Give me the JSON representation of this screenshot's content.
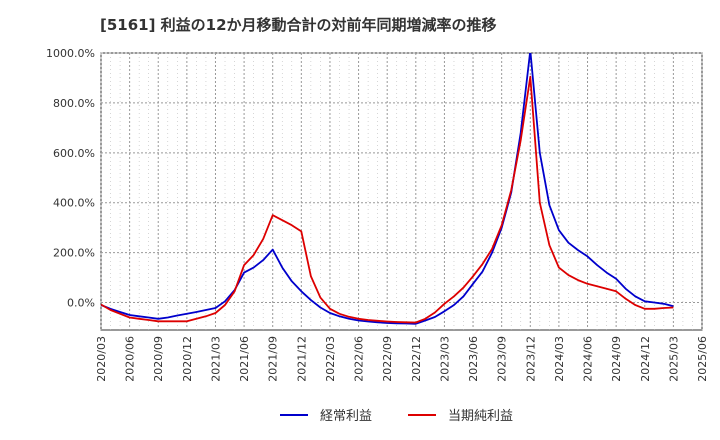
{
  "chart_data": {
    "type": "line",
    "title": "[5161]  利益の12か月移動合計の対前年同期増減率の推移",
    "xlabel": "",
    "ylabel": "",
    "ylim": [
      -110,
      1000
    ],
    "yticks": [
      0,
      200,
      400,
      600,
      800,
      1000
    ],
    "ytick_labels": [
      "0.0%",
      "200.0%",
      "400.0%",
      "600.0%",
      "800.0%",
      "1000.0%"
    ],
    "x_range": [
      "2020/03",
      "2025/06"
    ],
    "xtick_labels": [
      "2020/03",
      "2020/06",
      "2020/09",
      "2020/12",
      "2021/03",
      "2021/06",
      "2021/09",
      "2021/12",
      "2022/03",
      "2022/06",
      "2022/09",
      "2022/12",
      "2023/03",
      "2023/06",
      "2023/09",
      "2023/12",
      "2024/03",
      "2024/06",
      "2024/09",
      "2024/12",
      "2025/03",
      "2025/06"
    ],
    "grid": true,
    "legend_position": "bottom",
    "x": [
      "2020/03",
      "2020/04",
      "2020/05",
      "2020/06",
      "2020/07",
      "2020/08",
      "2020/09",
      "2020/10",
      "2020/11",
      "2020/12",
      "2021/01",
      "2021/02",
      "2021/03",
      "2021/04",
      "2021/05",
      "2021/06",
      "2021/07",
      "2021/08",
      "2021/09",
      "2021/10",
      "2021/11",
      "2021/12",
      "2022/01",
      "2022/02",
      "2022/03",
      "2022/04",
      "2022/05",
      "2022/06",
      "2022/07",
      "2022/08",
      "2022/09",
      "2022/10",
      "2022/11",
      "2022/12",
      "2023/01",
      "2023/02",
      "2023/03",
      "2023/04",
      "2023/05",
      "2023/06",
      "2023/07",
      "2023/08",
      "2023/09",
      "2023/10",
      "2023/11",
      "2023/12",
      "2024/01",
      "2024/02",
      "2024/03",
      "2024/04",
      "2024/05",
      "2024/06",
      "2024/07",
      "2024/08",
      "2024/09",
      "2024/10",
      "2024/11",
      "2024/12",
      "2025/01",
      "2025/02",
      "2025/03"
    ],
    "series": [
      {
        "name": "経常利益",
        "color": "#0000cc",
        "values": [
          -10,
          -25,
          -38,
          -50,
          -55,
          -60,
          -65,
          -60,
          -52,
          -45,
          -38,
          -30,
          -22,
          5,
          50,
          120,
          140,
          170,
          212,
          140,
          85,
          45,
          10,
          -20,
          -42,
          -55,
          -65,
          -72,
          -76,
          -79,
          -82,
          -83,
          -84,
          -85,
          -72,
          -58,
          -35,
          -10,
          25,
          75,
          125,
          200,
          300,
          440,
          680,
          1010,
          600,
          390,
          290,
          240,
          210,
          185,
          150,
          120,
          95,
          55,
          25,
          5,
          0,
          -5,
          -15
        ]
      },
      {
        "name": "当期純利益",
        "color": "#dd0000",
        "values": [
          -8,
          -30,
          -45,
          -60,
          -65,
          -70,
          -75,
          -75,
          -75,
          -75,
          -65,
          -55,
          -42,
          -10,
          45,
          150,
          190,
          255,
          350,
          330,
          310,
          285,
          105,
          20,
          -25,
          -45,
          -57,
          -65,
          -70,
          -73,
          -76,
          -78,
          -79,
          -80,
          -65,
          -40,
          -5,
          25,
          60,
          105,
          155,
          215,
          310,
          450,
          650,
          905,
          400,
          230,
          140,
          110,
          90,
          75,
          65,
          55,
          45,
          15,
          -10,
          -25,
          -25,
          -22,
          -20
        ]
      }
    ]
  }
}
